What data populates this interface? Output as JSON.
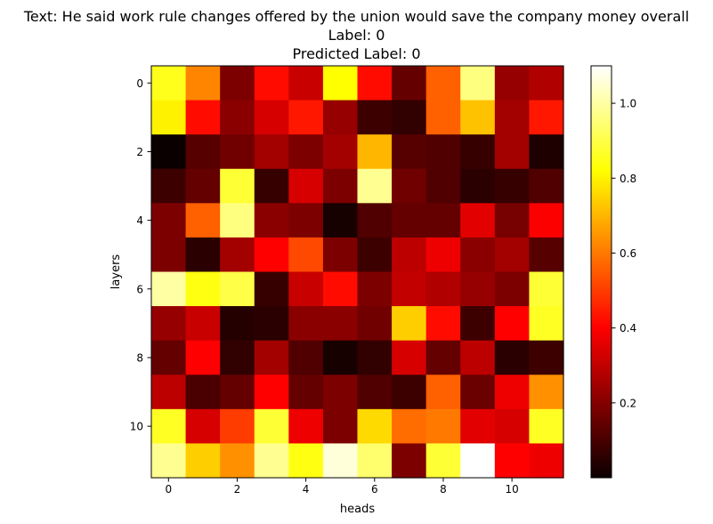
{
  "title_lines": [
    "Text: He said work rule changes offered by the union would save the company money overall",
    "Label: 0",
    "Predicted Label: 0"
  ],
  "chart_data": {
    "type": "heatmap",
    "colormap": "hot",
    "xlabel": "heads",
    "ylabel": "layers",
    "x_ticks": [
      0,
      2,
      4,
      6,
      8,
      10
    ],
    "y_ticks": [
      0,
      2,
      4,
      6,
      8,
      10
    ],
    "colorbar": {
      "range": [
        0.0,
        1.1
      ],
      "ticks": [
        0.2,
        0.4,
        0.6,
        0.8,
        1.0
      ]
    },
    "values": [
      [
        0.85,
        0.62,
        0.18,
        0.42,
        0.3,
        0.82,
        0.42,
        0.14,
        0.56,
        0.96,
        0.22,
        0.26
      ],
      [
        0.8,
        0.42,
        0.2,
        0.32,
        0.44,
        0.22,
        0.08,
        0.06,
        0.56,
        0.72,
        0.24,
        0.44
      ],
      [
        0.0,
        0.12,
        0.16,
        0.24,
        0.18,
        0.24,
        0.7,
        0.12,
        0.11,
        0.07,
        0.24,
        0.03
      ],
      [
        0.08,
        0.14,
        0.88,
        0.07,
        0.32,
        0.18,
        0.98,
        0.16,
        0.11,
        0.05,
        0.07,
        0.11
      ],
      [
        0.18,
        0.56,
        0.96,
        0.2,
        0.18,
        0.02,
        0.11,
        0.14,
        0.14,
        0.34,
        0.17,
        0.38
      ],
      [
        0.18,
        0.05,
        0.24,
        0.4,
        0.52,
        0.18,
        0.08,
        0.28,
        0.36,
        0.2,
        0.24,
        0.12
      ],
      [
        1.0,
        0.84,
        0.9,
        0.07,
        0.3,
        0.42,
        0.18,
        0.29,
        0.26,
        0.22,
        0.18,
        0.88
      ],
      [
        0.22,
        0.3,
        0.04,
        0.05,
        0.2,
        0.2,
        0.16,
        0.74,
        0.42,
        0.08,
        0.4,
        0.86
      ],
      [
        0.14,
        0.4,
        0.06,
        0.24,
        0.11,
        0.02,
        0.06,
        0.32,
        0.14,
        0.28,
        0.05,
        0.08
      ],
      [
        0.28,
        0.1,
        0.14,
        0.4,
        0.14,
        0.18,
        0.11,
        0.08,
        0.56,
        0.15,
        0.36,
        0.64
      ],
      [
        0.86,
        0.32,
        0.5,
        0.88,
        0.36,
        0.18,
        0.76,
        0.58,
        0.6,
        0.34,
        0.32,
        0.86
      ],
      [
        0.98,
        0.74,
        0.64,
        0.98,
        0.84,
        1.06,
        0.94,
        0.18,
        0.88,
        1.1,
        0.4,
        0.36
      ]
    ]
  }
}
